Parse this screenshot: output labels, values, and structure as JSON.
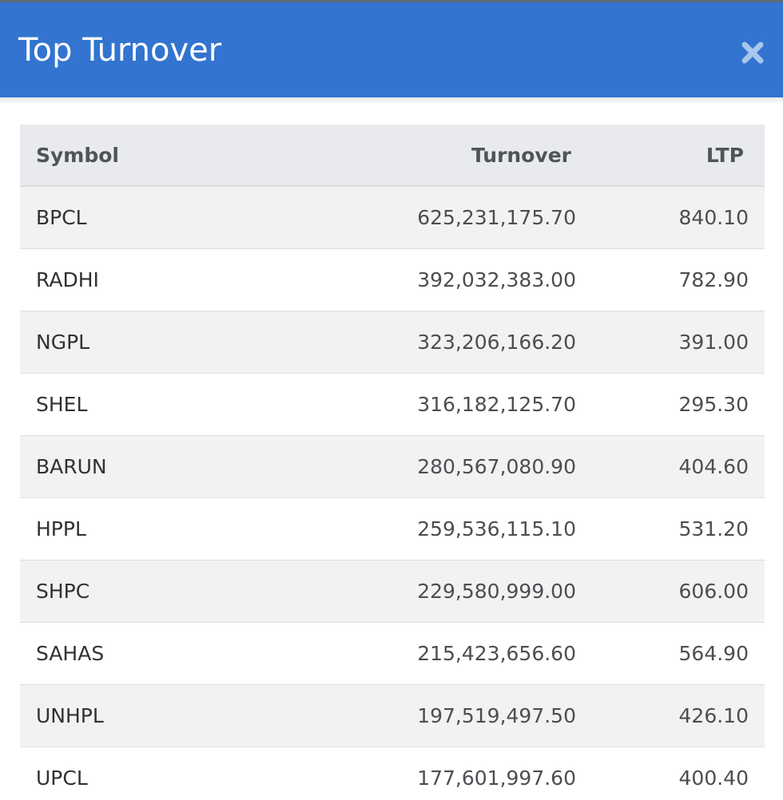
{
  "modal": {
    "title": "Top Turnover",
    "close_icon": "close-icon",
    "colors": {
      "header_bg": "#3274d0",
      "header_text": "#ffffff",
      "table_header_bg": "#e9eaee",
      "row_stripe": "#f2f2f2"
    }
  },
  "table": {
    "columns": [
      "Symbol",
      "Turnover",
      "LTP"
    ],
    "rows": [
      {
        "symbol": "BPCL",
        "turnover": "625,231,175.70",
        "ltp": "840.10"
      },
      {
        "symbol": "RADHI",
        "turnover": "392,032,383.00",
        "ltp": "782.90"
      },
      {
        "symbol": "NGPL",
        "turnover": "323,206,166.20",
        "ltp": "391.00"
      },
      {
        "symbol": "SHEL",
        "turnover": "316,182,125.70",
        "ltp": "295.30"
      },
      {
        "symbol": "BARUN",
        "turnover": "280,567,080.90",
        "ltp": "404.60"
      },
      {
        "symbol": "HPPL",
        "turnover": "259,536,115.10",
        "ltp": "531.20"
      },
      {
        "symbol": "SHPC",
        "turnover": "229,580,999.00",
        "ltp": "606.00"
      },
      {
        "symbol": "SAHAS",
        "turnover": "215,423,656.60",
        "ltp": "564.90"
      },
      {
        "symbol": "UNHPL",
        "turnover": "197,519,497.50",
        "ltp": "426.10"
      },
      {
        "symbol": "UPCL",
        "turnover": "177,601,997.60",
        "ltp": "400.40"
      }
    ]
  }
}
